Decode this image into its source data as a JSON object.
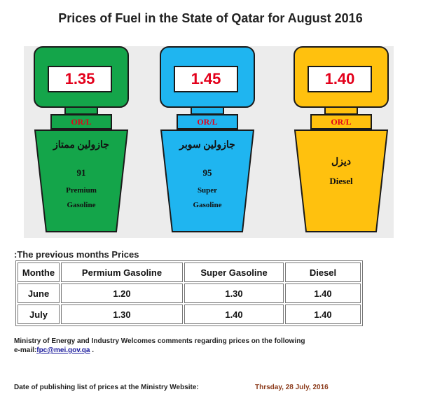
{
  "title": "Prices of Fuel in the State of Qatar for August 2016",
  "colors": {
    "green": "#14a54a",
    "blue": "#1fb5f0",
    "yellow": "#ffc10e",
    "price_red": "#e3001b"
  },
  "pumps": [
    {
      "price": "1.35",
      "unit": "OR/L",
      "name_ar": "جازولين ممتاز",
      "octane": "91",
      "name_en_line1": "Premium",
      "name_en_line2": "Gasoline"
    },
    {
      "price": "1.45",
      "unit": "OR/L",
      "name_ar": "جازولين سوبر",
      "octane": "95",
      "name_en_line1": "Super",
      "name_en_line2": "Gasoline"
    },
    {
      "price": "1.40",
      "unit": "OR/L",
      "name_ar": "ديزل",
      "name_en": "Diesel"
    }
  ],
  "previous": {
    "heading": ":The previous months  Prices",
    "headers": [
      "Monthe",
      "Permium Gasoline",
      "Super Gasoline",
      "Diesel"
    ],
    "rows": [
      [
        "June",
        "1.20",
        "1.30",
        "1.40"
      ],
      [
        "July",
        "1.30",
        "1.40",
        "1.40"
      ]
    ]
  },
  "footer": {
    "line1": "Ministry of Energy and Industry Welcomes comments regarding prices on the following",
    "email_prefix": "e-mail:",
    "email": "fpc@mei.gov.qa",
    "email_suffix": " ."
  },
  "publish": {
    "label": "Date of publishing list of prices at the Ministry Website:",
    "date": "Thrsday, 28 July, 2016"
  }
}
